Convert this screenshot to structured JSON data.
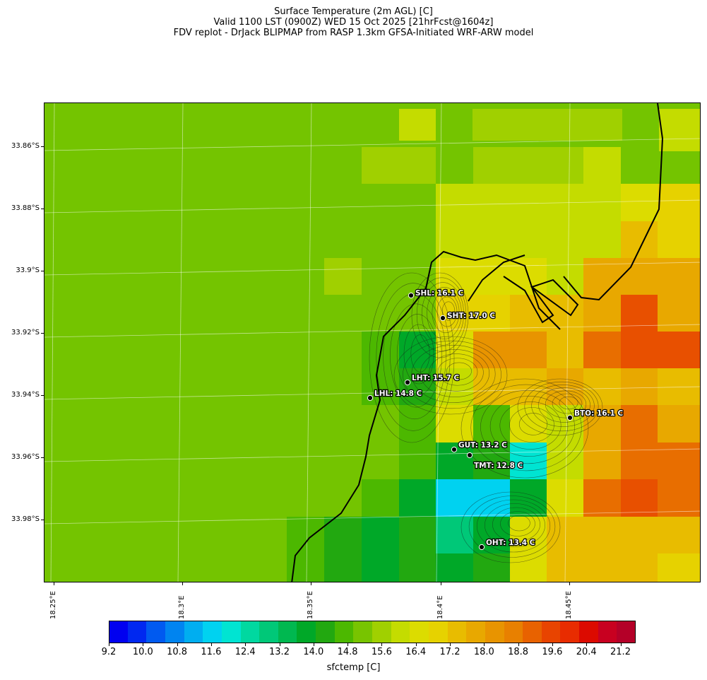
{
  "title": {
    "line1": "Surface Temperature (2m AGL) [C]",
    "line2": "Valid 1100 LST (0900Z) WED 15 Oct 2025 [21hrFcst@1604z]",
    "line3": "FDV replot - DrJack BLIPMAP from RASP 1.3km GFSA-Initiated WRF-ARW model"
  },
  "axes": {
    "y_labels": [
      "33.86°S",
      "33.88°S",
      "33.9°S",
      "33.92°S",
      "33.94°S",
      "33.96°S",
      "33.98°S"
    ],
    "x_labels": [
      "18.25°E",
      "18.3°E",
      "18.35°E",
      "18.4°E",
      "18.45°E"
    ]
  },
  "colorbar": {
    "title": "sfctemp [C]",
    "labels": [
      "9.2",
      "10.0",
      "10.8",
      "11.6",
      "12.4",
      "13.2",
      "14.0",
      "14.8",
      "15.6",
      "16.4",
      "17.2",
      "18.0",
      "18.8",
      "19.6",
      "20.4",
      "21.2"
    ],
    "colors": [
      "#0000f0",
      "#0028f0",
      "#005af0",
      "#0084f0",
      "#00aef0",
      "#00d2f0",
      "#00e4d2",
      "#00d8a0",
      "#00c878",
      "#00b850",
      "#00a828",
      "#22a810",
      "#4cb800",
      "#78c400",
      "#a0d000",
      "#c4dc00",
      "#dcdc00",
      "#e6d200",
      "#e8bc00",
      "#e8a800",
      "#e89400",
      "#e88000",
      "#e86200",
      "#e84400",
      "#e82c00",
      "#dc0a00",
      "#c80020",
      "#b40028"
    ]
  },
  "stations": [
    {
      "id": "SHL",
      "label": "SHL: 16.1 C",
      "value": 16.1
    },
    {
      "id": "SHT",
      "label": "SHT: 17.0 C",
      "value": 17.0
    },
    {
      "id": "LHT",
      "label": "LHT: 15.7 C",
      "value": 15.7
    },
    {
      "id": "LHL",
      "label": "LHL: 14.8 C",
      "value": 14.8
    },
    {
      "id": "BTO",
      "label": "BTO: 16.1 C",
      "value": 16.1
    },
    {
      "id": "GUT",
      "label": "GUT: 13.2 C",
      "value": 13.2
    },
    {
      "id": "TMT",
      "label": "TMT: 12.8 C",
      "value": 12.8
    },
    {
      "id": "OHT",
      "label": "OHT: 13.4 C",
      "value": 13.4
    }
  ]
}
